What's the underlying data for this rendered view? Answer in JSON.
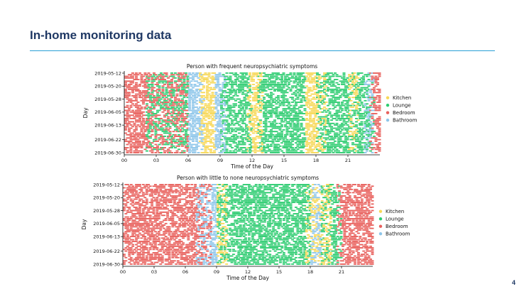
{
  "slide": {
    "title": "In-home monitoring data",
    "page_number": "4"
  },
  "colors": {
    "Kitchen": "#f7d857",
    "Lounge": "#2ecc71",
    "Bedroom": "#e8605c",
    "Bathroom": "#8ec6ea",
    "accent_rule": "#2a9fd6",
    "title": "#1f3864"
  },
  "chart_data": [
    {
      "type": "scatter",
      "title": "Person with frequent neuropsychiatric symptoms",
      "xlabel": "Time of the Day",
      "ylabel": "Day",
      "xlim": [
        0,
        24
      ],
      "x_ticks": [
        "00",
        "03",
        "06",
        "09",
        "12",
        "15",
        "18",
        "21"
      ],
      "y_ticks": [
        "2019-05-12",
        "2019-05-20",
        "2019-05-28",
        "2019-06-05",
        "2019-06-13",
        "2019-06-22",
        "2019-06-30"
      ],
      "ylim": [
        "2019-05-12",
        "2019-06-30"
      ],
      "legend": {
        "entries": [
          "Kitchen",
          "Lounge",
          "Bedroom",
          "Bathroom"
        ],
        "position": "right"
      },
      "grid": false,
      "series": [
        {
          "name": "Kitchen",
          "hours": [
            [
              7,
              8.5
            ],
            [
              11.5,
              13
            ],
            [
              17,
              19
            ],
            [
              21,
              22
            ]
          ]
        },
        {
          "name": "Lounge",
          "hours": [
            [
              2,
              6
            ],
            [
              9,
              12
            ],
            [
              12.5,
              17
            ],
            [
              18,
              23.5
            ]
          ]
        },
        {
          "name": "Bedroom",
          "hours": [
            [
              0,
              6
            ],
            [
              23,
              24
            ]
          ]
        },
        {
          "name": "Bathroom",
          "hours": [
            [
              6,
              7.5
            ],
            [
              8.5,
              9.5
            ],
            [
              22.5,
              23.5
            ]
          ]
        }
      ]
    },
    {
      "type": "scatter",
      "title": "Person with little to none neuropsychiatric symptoms",
      "xlabel": "Time of the Day",
      "ylabel": "Day",
      "xlim": [
        0,
        24
      ],
      "x_ticks": [
        "00",
        "03",
        "06",
        "09",
        "12",
        "15",
        "18",
        "21"
      ],
      "y_ticks": [
        "2019-05-12",
        "2019-05-20",
        "2019-05-28",
        "2019-06-05",
        "2019-06-13",
        "2019-06-22",
        "2019-06-30"
      ],
      "ylim": [
        "2019-05-12",
        "2019-06-30"
      ],
      "legend": {
        "entries": [
          "Kitchen",
          "Lounge",
          "Bedroom",
          "Bathroom"
        ],
        "position": "right"
      },
      "grid": false,
      "series": [
        {
          "name": "Kitchen",
          "hours": [
            [
              9,
              10
            ],
            [
              17.5,
              20
            ]
          ]
        },
        {
          "name": "Lounge",
          "hours": [
            [
              9,
              18
            ],
            [
              19,
              21
            ]
          ]
        },
        {
          "name": "Bedroom",
          "hours": [
            [
              0,
              8.5
            ],
            [
              20.5,
              24
            ]
          ]
        },
        {
          "name": "Bathroom",
          "hours": [
            [
              7,
              9
            ],
            [
              18,
              19
            ]
          ]
        }
      ]
    }
  ]
}
